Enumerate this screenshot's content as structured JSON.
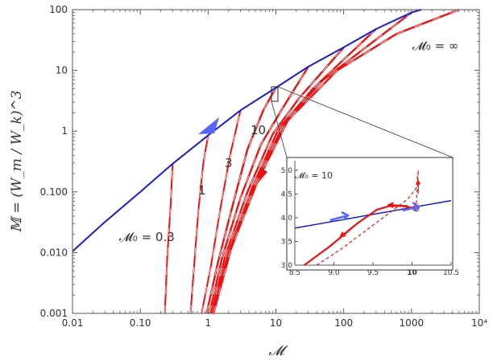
{
  "chart_data": {
    "type": "line",
    "title": "",
    "xlabel": "𝓜",
    "ylabel": "𝕄 = (W_m / W_k)^3",
    "xscale": "log",
    "yscale": "log",
    "xlim": [
      0.01,
      10000
    ],
    "ylim": [
      0.001,
      100
    ],
    "x_tick_labels": [
      "0.01",
      "0.10",
      "1",
      "10",
      "100",
      "1000",
      "10⁴"
    ],
    "y_tick_labels": [
      "0.001",
      "0.010",
      "0.100",
      "1",
      "10",
      "100"
    ],
    "grid": false,
    "legend": "none",
    "colors": {
      "blue": "#1a1ad6",
      "red": "#ee1111",
      "arrow_blue": "#5566ff"
    },
    "blue_curve": {
      "points": [
        [
          0.01,
          0.0105
        ],
        [
          0.03,
          0.032
        ],
        [
          0.1,
          0.1
        ],
        [
          0.3,
          0.29
        ],
        [
          1,
          0.85
        ],
        [
          3,
          2.2
        ],
        [
          10,
          5.2
        ],
        [
          30,
          11.5
        ],
        [
          100,
          24
        ],
        [
          300,
          48
        ],
        [
          1000,
          90
        ],
        [
          1400,
          100
        ]
      ]
    },
    "red_curves": [
      {
        "M0_label": "0.3",
        "points": [
          [
            0.23,
            0.001
          ],
          [
            0.25,
            0.009
          ],
          [
            0.28,
            0.06
          ],
          [
            0.3,
            0.29
          ]
        ]
      },
      {
        "M0_label": "1",
        "points": [
          [
            0.55,
            0.001
          ],
          [
            0.62,
            0.006
          ],
          [
            0.72,
            0.05
          ],
          [
            0.85,
            0.3
          ],
          [
            1,
            0.85
          ]
        ]
      },
      {
        "M0_label": "3",
        "points": [
          [
            0.8,
            0.001
          ],
          [
            1.1,
            0.006
          ],
          [
            1.5,
            0.05
          ],
          [
            2.1,
            0.4
          ],
          [
            3,
            2.2
          ]
        ]
      },
      {
        "M0_label": "10",
        "points": [
          [
            0.95,
            0.001
          ],
          [
            1.4,
            0.007
          ],
          [
            2.3,
            0.06
          ],
          [
            3.8,
            0.5
          ],
          [
            6.5,
            2.2
          ],
          [
            10,
            5.2
          ]
        ]
      },
      {
        "M0_label": "",
        "points": [
          [
            1.05,
            0.001
          ],
          [
            1.6,
            0.008
          ],
          [
            3,
            0.08
          ],
          [
            6,
            0.6
          ],
          [
            12,
            2.2
          ],
          [
            30,
            11.5
          ]
        ]
      },
      {
        "M0_label": "",
        "points": [
          [
            1.12,
            0.001
          ],
          [
            1.8,
            0.009
          ],
          [
            3.8,
            0.1
          ],
          [
            9,
            0.9
          ],
          [
            22,
            3.5
          ],
          [
            100,
            24
          ]
        ]
      },
      {
        "M0_label": "",
        "points": [
          [
            1.15,
            0.001
          ],
          [
            2,
            0.01
          ],
          [
            4.5,
            0.12
          ],
          [
            11,
            1.1
          ],
          [
            35,
            5
          ],
          [
            300,
            48
          ]
        ]
      },
      {
        "M0_label": "",
        "points": [
          [
            1.18,
            0.001
          ],
          [
            2.1,
            0.011
          ],
          [
            5,
            0.14
          ],
          [
            13,
            1.3
          ],
          [
            50,
            7
          ],
          [
            1000,
            90
          ]
        ]
      },
      {
        "M0_label": "∞",
        "points": [
          [
            1.2,
            0.001
          ],
          [
            2.2,
            0.012
          ],
          [
            5.5,
            0.16
          ],
          [
            15,
            1.5
          ],
          [
            80,
            10
          ],
          [
            600,
            40
          ],
          [
            5000,
            100
          ]
        ]
      }
    ],
    "annotations": {
      "m0_inf": "𝓜₀ = ∞",
      "m0_03": "𝓜₀ = 0.3",
      "label_1": "1",
      "label_3": "3",
      "label_10": "10"
    },
    "inset": {
      "title": "𝓜₀ = 10",
      "xlim": [
        8.5,
        10.5
      ],
      "ylim": [
        3.0,
        5.2
      ],
      "x_tick_labels": [
        "8.5",
        "9.0",
        "9.5",
        "10",
        "10.5"
      ],
      "y_tick_labels": [
        "3.0",
        "3.5",
        "4.0",
        "4.5",
        "5.0"
      ],
      "blue_line": [
        [
          8.5,
          3.78
        ],
        [
          10.5,
          4.36
        ]
      ],
      "red_solid": [
        [
          8.62,
          3.0
        ],
        [
          8.95,
          3.4
        ],
        [
          9.3,
          3.88
        ],
        [
          9.55,
          4.17
        ],
        [
          9.7,
          4.24
        ],
        [
          9.85,
          4.25
        ],
        [
          10.05,
          4.2
        ]
      ],
      "red_dashed": [
        [
          8.78,
          3.0
        ],
        [
          9.1,
          3.35
        ],
        [
          9.45,
          3.78
        ],
        [
          9.75,
          4.15
        ],
        [
          9.95,
          4.4
        ],
        [
          10.05,
          4.62
        ],
        [
          10.08,
          5.0
        ],
        [
          10.05,
          4.2
        ]
      ],
      "circle_point": [
        10.05,
        4.2
      ]
    }
  }
}
